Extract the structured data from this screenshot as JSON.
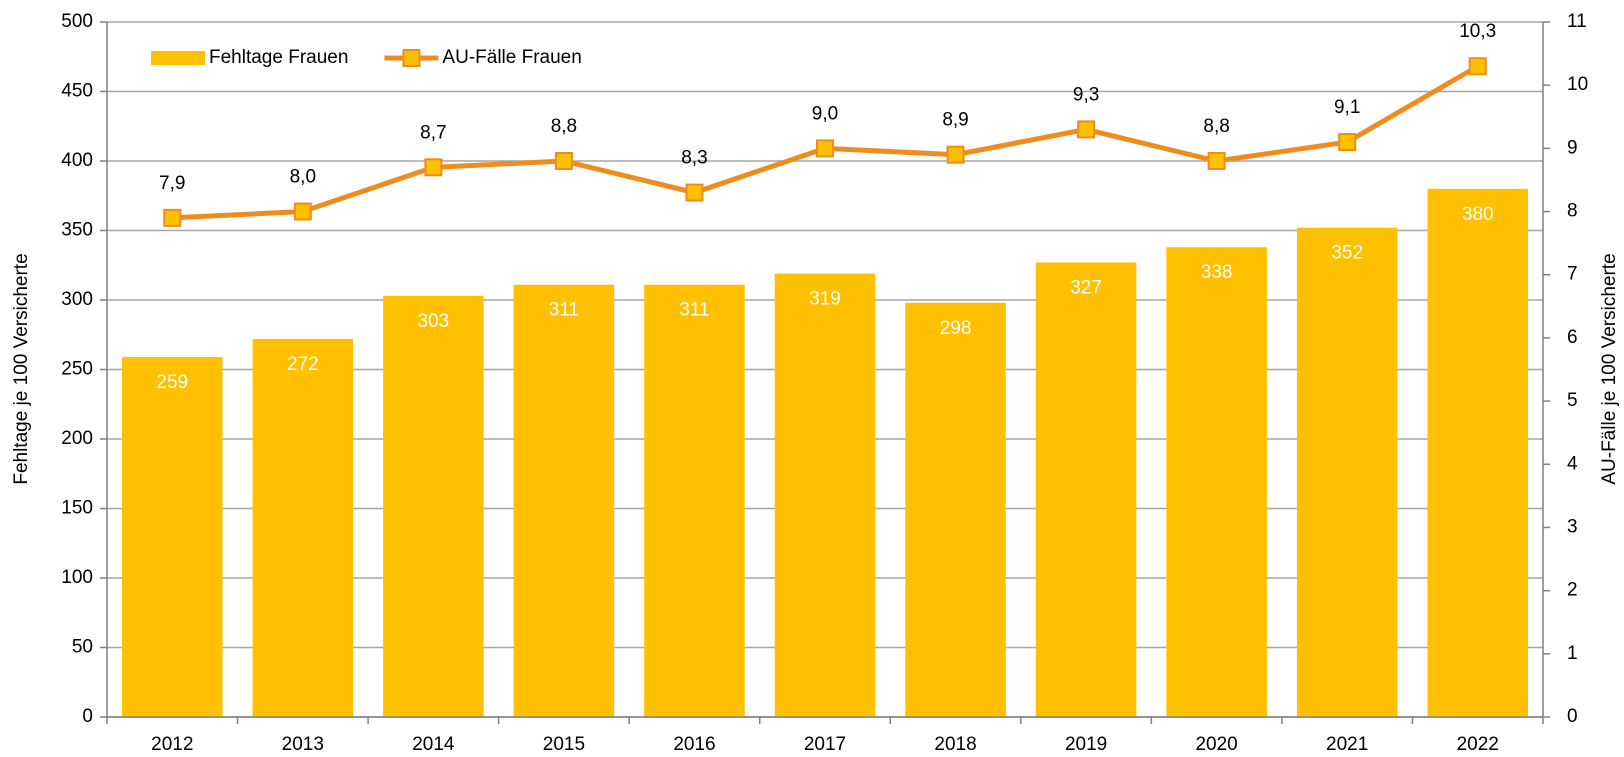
{
  "chart_data": {
    "type": "bar",
    "categories": [
      "2012",
      "2013",
      "2014",
      "2015",
      "2016",
      "2017",
      "2018",
      "2019",
      "2020",
      "2021",
      "2022"
    ],
    "series": [
      {
        "name": "Fehltage Frauen",
        "type": "bar",
        "color": "#ffc000",
        "values": [
          259,
          272,
          303,
          311,
          311,
          319,
          298,
          327,
          338,
          352,
          380
        ]
      },
      {
        "name": "AU-Fälle Frauen",
        "type": "line",
        "axis": "y2",
        "color": "#f08c1e",
        "marker_color": "#ffc000",
        "values": [
          7.9,
          8.0,
          8.7,
          8.8,
          8.3,
          9.0,
          8.9,
          9.3,
          8.8,
          9.1,
          10.3
        ],
        "value_labels": [
          "7,9",
          "8,0",
          "8,7",
          "8,8",
          "8,3",
          "9,0",
          "8,9",
          "9,3",
          "8,8",
          "9,1",
          "10,3"
        ]
      }
    ],
    "ylabel": "Fehltage je 100 Versicherte",
    "y2label": "AU-Fälle je 100 Versicherte",
    "ylim": [
      0,
      500
    ],
    "yticks": [
      0,
      50,
      100,
      150,
      200,
      250,
      300,
      350,
      400,
      450,
      500
    ],
    "y2lim": [
      0,
      11
    ],
    "y2ticks": [
      0,
      1,
      2,
      3,
      4,
      5,
      6,
      7,
      8,
      9,
      10,
      11
    ],
    "grid": true,
    "legend": "top-left"
  }
}
